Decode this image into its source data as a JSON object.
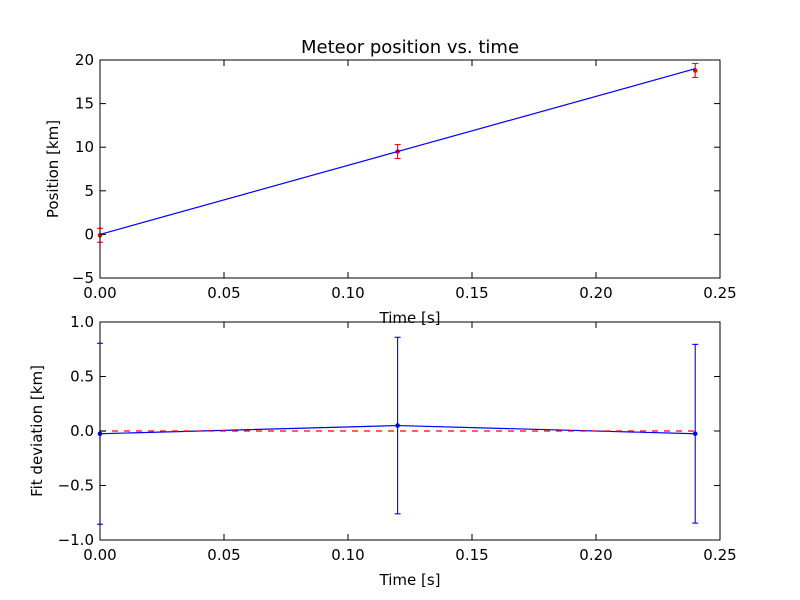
{
  "chart_data": [
    {
      "type": "line",
      "title": "Meteor position vs. time",
      "xlabel": "Time [s]",
      "ylabel": "Position [km]",
      "xlim": [
        0,
        0.25
      ],
      "ylim": [
        -5,
        20
      ],
      "xticks": [
        0,
        0.05,
        0.1,
        0.15,
        0.2,
        0.25
      ],
      "xtick_labels": [
        "0.00",
        "0.05",
        "0.10",
        "0.15",
        "0.20",
        "0.25"
      ],
      "yticks": [
        -5,
        0,
        5,
        10,
        15,
        20
      ],
      "ytick_labels": [
        "−5",
        "0",
        "5",
        "10",
        "15",
        "20"
      ],
      "grid": false,
      "series": [
        {
          "style": "points-with-errorbars",
          "color": "#ff0000",
          "x": [
            0.0,
            0.12,
            0.24
          ],
          "y": [
            -0.1,
            9.5,
            18.8
          ],
          "yerr": [
            0.8,
            0.8,
            0.8
          ]
        },
        {
          "style": "line",
          "color": "#0000ff",
          "x": [
            0.0,
            0.24
          ],
          "y": [
            0.0,
            19.0
          ]
        }
      ]
    },
    {
      "type": "line",
      "title": "",
      "xlabel": "Time [s]",
      "ylabel": "Fit deviation [km]",
      "xlim": [
        0,
        0.25
      ],
      "ylim": [
        -1.0,
        1.0
      ],
      "xticks": [
        0,
        0.05,
        0.1,
        0.15,
        0.2,
        0.25
      ],
      "xtick_labels": [
        "0.00",
        "0.05",
        "0.10",
        "0.15",
        "0.20",
        "0.25"
      ],
      "yticks": [
        -1.0,
        -0.5,
        0.0,
        0.5,
        1.0
      ],
      "ytick_labels": [
        "−1.0",
        "−0.5",
        "0.0",
        "0.5",
        "1.0"
      ],
      "grid": false,
      "series": [
        {
          "style": "line-with-errorbars",
          "color": "#0000ff",
          "x": [
            0.0,
            0.12,
            0.24
          ],
          "y": [
            -0.025,
            0.05,
            -0.025
          ],
          "yerr": [
            0.83,
            0.81,
            0.82
          ]
        },
        {
          "style": "dashed",
          "color": "#ff0000",
          "x": [
            0.0,
            0.24
          ],
          "y": [
            0.0,
            0.0
          ]
        }
      ]
    }
  ]
}
